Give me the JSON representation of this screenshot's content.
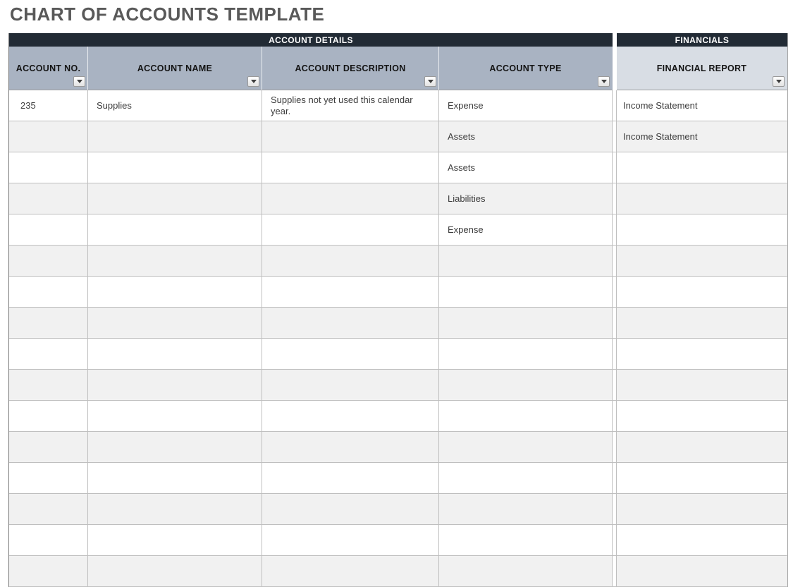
{
  "page": {
    "title": "CHART OF ACCOUNTS TEMPLATE"
  },
  "colors": {
    "title-color": "#595959",
    "band-bg": "#222b35",
    "band-text": "#ffffff",
    "header-bg": "#a9b3c2",
    "header-alt-bg": "#d8dde4",
    "row-alt-bg": "#f1f1f1",
    "grid-border": "#bfbfbf",
    "cell-text": "#3c3c3c"
  },
  "icons": {
    "filter": "filter-dropdown-icon"
  },
  "table": {
    "groups": [
      {
        "label": "ACCOUNT DETAILS",
        "span": 4
      },
      {
        "label": "FINANCIALS",
        "span": 1
      }
    ],
    "columns": [
      {
        "key": "account-no",
        "label": "ACCOUNT NO."
      },
      {
        "key": "account-name",
        "label": "ACCOUNT NAME"
      },
      {
        "key": "account-description",
        "label": "ACCOUNT DESCRIPTION"
      },
      {
        "key": "account-type",
        "label": "ACCOUNT TYPE"
      },
      {
        "key": "financial-report",
        "label": "FINANCIAL REPORT"
      }
    ],
    "rows": [
      [
        "235",
        "Supplies",
        "Supplies not yet used this calendar year.",
        "Expense",
        "Income Statement"
      ],
      [
        "",
        "",
        "",
        "Assets",
        "Income Statement"
      ],
      [
        "",
        "",
        "",
        "Assets",
        ""
      ],
      [
        "",
        "",
        "",
        "Liabilities",
        ""
      ],
      [
        "",
        "",
        "",
        "Expense",
        ""
      ],
      [
        "",
        "",
        "",
        "",
        ""
      ],
      [
        "",
        "",
        "",
        "",
        ""
      ],
      [
        "",
        "",
        "",
        "",
        ""
      ],
      [
        "",
        "",
        "",
        "",
        ""
      ],
      [
        "",
        "",
        "",
        "",
        ""
      ],
      [
        "",
        "",
        "",
        "",
        ""
      ],
      [
        "",
        "",
        "",
        "",
        ""
      ],
      [
        "",
        "",
        "",
        "",
        ""
      ],
      [
        "",
        "",
        "",
        "",
        ""
      ],
      [
        "",
        "",
        "",
        "",
        ""
      ],
      [
        "",
        "",
        "",
        "",
        ""
      ]
    ]
  }
}
